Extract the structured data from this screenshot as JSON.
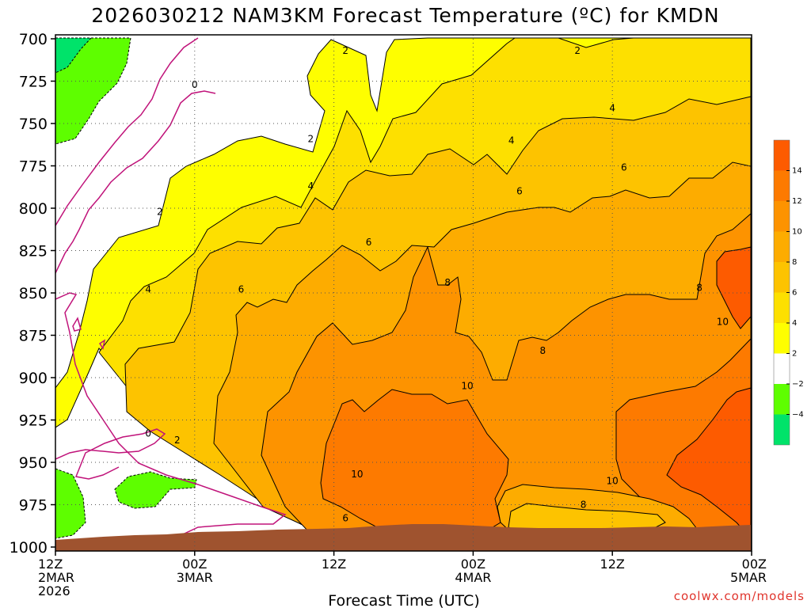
{
  "chart_data": {
    "type": "heatmap",
    "title": "2026030212 NAM3KM Forecast Temperature (ºC) for KMDN",
    "xlabel": "Forecast Time (UTC)",
    "ylabel": "",
    "credit": "coolwx.com/models",
    "y_axis": {
      "ticks": [
        "700",
        "725",
        "750",
        "775",
        "800",
        "825",
        "850",
        "875",
        "900",
        "925",
        "950",
        "975",
        "1000"
      ],
      "range": [
        700,
        1000
      ],
      "inverted": true
    },
    "x_axis": {
      "range_hours": [
        0,
        60
      ],
      "ticks": [
        {
          "hour": 0,
          "lines": [
            "12Z",
            "2MAR",
            "2026"
          ]
        },
        {
          "hour": 12,
          "lines": [
            "00Z",
            "3MAR"
          ]
        },
        {
          "hour": 24,
          "lines": [
            "12Z"
          ]
        },
        {
          "hour": 36,
          "lines": [
            "00Z",
            "4MAR"
          ]
        },
        {
          "hour": 48,
          "lines": [
            "12Z"
          ]
        },
        {
          "hour": 60,
          "lines": [
            "00Z",
            "5MAR"
          ]
        }
      ]
    },
    "grid": true,
    "legend": {
      "placement": "right",
      "levels": [
        {
          "label": "14",
          "color": "#fd5b00"
        },
        {
          "label": "12",
          "color": "#fd7a00"
        },
        {
          "label": "10",
          "color": "#fd9300"
        },
        {
          "label": "8",
          "color": "#fdac00"
        },
        {
          "label": "6",
          "color": "#fdc300"
        },
        {
          "label": "4",
          "color": "#fde000"
        },
        {
          "label": "2",
          "color": "#fefe00"
        },
        {
          "label": "−2",
          "color": "#ffffff"
        },
        {
          "label": "−4",
          "color": "#5efe00"
        },
        {
          "label": "",
          "color": "#00e36a"
        }
      ]
    },
    "contour_labels": [
      {
        "text": "2",
        "hour": 25.0,
        "p": 707
      },
      {
        "text": "2",
        "hour": 45.0,
        "p": 707
      },
      {
        "text": "0",
        "hour": 12.0,
        "p": 727
      },
      {
        "text": "4",
        "hour": 48.0,
        "p": 741
      },
      {
        "text": "2",
        "hour": 22.0,
        "p": 759
      },
      {
        "text": "4",
        "hour": 39.3,
        "p": 760
      },
      {
        "text": "6",
        "hour": 49.0,
        "p": 776
      },
      {
        "text": "4",
        "hour": 22.0,
        "p": 787
      },
      {
        "text": "6",
        "hour": 40.0,
        "p": 790
      },
      {
        "text": "2",
        "hour": 9.0,
        "p": 802
      },
      {
        "text": "6",
        "hour": 27.0,
        "p": 820
      },
      {
        "text": "8",
        "hour": 33.8,
        "p": 844
      },
      {
        "text": "4",
        "hour": 8.0,
        "p": 848
      },
      {
        "text": "6",
        "hour": 16.0,
        "p": 848
      },
      {
        "text": "8",
        "hour": 55.5,
        "p": 847
      },
      {
        "text": "10",
        "hour": 57.5,
        "p": 867
      },
      {
        "text": "8",
        "hour": 42.0,
        "p": 884
      },
      {
        "text": "10",
        "hour": 35.5,
        "p": 905
      },
      {
        "text": "0",
        "hour": 8.0,
        "p": 933
      },
      {
        "text": "2",
        "hour": 10.5,
        "p": 937
      },
      {
        "text": "10",
        "hour": 26.0,
        "p": 957
      },
      {
        "text": "10",
        "hour": 48.0,
        "p": 961
      },
      {
        "text": "8",
        "hour": 45.5,
        "p": 975
      },
      {
        "text": "6",
        "hour": 25.0,
        "p": 983
      }
    ]
  }
}
